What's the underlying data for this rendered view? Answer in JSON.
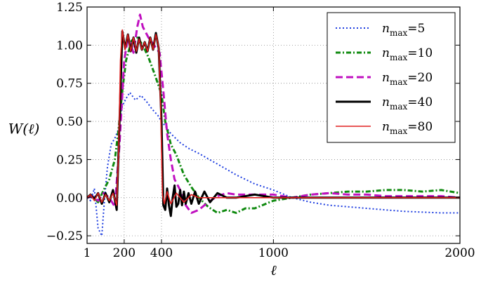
{
  "chart_data": {
    "type": "line",
    "title": "",
    "xlabel": "ℓ",
    "ylabel": "W(ℓ)",
    "xlim": [
      1,
      2000
    ],
    "ylim": [
      -0.3,
      1.25
    ],
    "grid": true,
    "legend_position": "top-right",
    "x_ticks": [
      {
        "value": 1,
        "label": "1"
      },
      {
        "value": 200,
        "label": "200"
      },
      {
        "value": 400,
        "label": "400"
      },
      {
        "value": 1000,
        "label": "1000"
      },
      {
        "value": 2000,
        "label": "2000"
      }
    ],
    "y_ticks": [
      {
        "value": -0.25,
        "label": "−0.25"
      },
      {
        "value": 0.0,
        "label": "0.00"
      },
      {
        "value": 0.25,
        "label": "0.25"
      },
      {
        "value": 0.5,
        "label": "0.50"
      },
      {
        "value": 0.75,
        "label": "0.75"
      },
      {
        "value": 1.0,
        "label": "1.00"
      },
      {
        "value": 1.25,
        "label": "1.25"
      }
    ],
    "series": [
      {
        "name": "n_max = 5",
        "legend_var": "n",
        "legend_sub": "max",
        "legend_eq": "=5",
        "color": "#1f3fe0",
        "dash": "2,3",
        "width": 2,
        "x": [
          1,
          20,
          40,
          60,
          80,
          95,
          110,
          130,
          150,
          170,
          190,
          210,
          230,
          260,
          290,
          320,
          350,
          380,
          400,
          420,
          450,
          500,
          550,
          600,
          700,
          800,
          900,
          1000,
          1100,
          1200,
          1300,
          1400,
          1500,
          1600,
          1700,
          1800,
          1900,
          2000
        ],
        "y": [
          0.0,
          -0.02,
          0.06,
          -0.2,
          -0.25,
          0.0,
          0.2,
          0.35,
          0.39,
          0.45,
          0.6,
          0.65,
          0.69,
          0.64,
          0.67,
          0.63,
          0.58,
          0.54,
          0.5,
          0.47,
          0.42,
          0.36,
          0.32,
          0.29,
          0.22,
          0.15,
          0.09,
          0.05,
          0.0,
          -0.03,
          -0.05,
          -0.06,
          -0.07,
          -0.08,
          -0.09,
          -0.095,
          -0.1,
          -0.1
        ]
      },
      {
        "name": "n_max = 10",
        "legend_var": "n",
        "legend_sub": "max",
        "legend_eq": "=10",
        "color": "#108a10",
        "dash": "7,3,2,3",
        "width": 3,
        "x": [
          1,
          30,
          60,
          90,
          120,
          150,
          170,
          190,
          210,
          240,
          270,
          300,
          330,
          360,
          380,
          400,
          420,
          450,
          480,
          520,
          560,
          600,
          650,
          700,
          750,
          800,
          850,
          900,
          1000,
          1100,
          1200,
          1300,
          1400,
          1500,
          1600,
          1700,
          1800,
          1900,
          2000
        ],
        "y": [
          0.0,
          0.01,
          -0.03,
          0.05,
          0.12,
          0.25,
          0.45,
          0.7,
          0.9,
          1.03,
          1.05,
          1.0,
          0.92,
          0.82,
          0.75,
          0.68,
          0.5,
          0.35,
          0.28,
          0.15,
          0.07,
          0.0,
          -0.06,
          -0.1,
          -0.08,
          -0.1,
          -0.07,
          -0.07,
          -0.02,
          0.0,
          0.02,
          0.03,
          0.04,
          0.04,
          0.05,
          0.05,
          0.04,
          0.05,
          0.03
        ]
      },
      {
        "name": "n_max = 20",
        "legend_var": "n",
        "legend_sub": "max",
        "legend_eq": "=20",
        "color": "#c010c0",
        "dash": "10,5",
        "width": 3,
        "x": [
          1,
          30,
          60,
          90,
          120,
          150,
          175,
          200,
          220,
          250,
          270,
          285,
          300,
          330,
          360,
          390,
          410,
          430,
          450,
          470,
          500,
          530,
          560,
          600,
          650,
          700,
          750,
          800,
          900,
          1000,
          1100,
          1200,
          1300,
          1400,
          1500,
          1600,
          1700,
          1800,
          1900,
          2000
        ],
        "y": [
          0.0,
          0.01,
          -0.02,
          0.03,
          0.0,
          -0.06,
          0.35,
          0.9,
          1.05,
          0.95,
          1.12,
          1.2,
          1.12,
          1.05,
          1.0,
          0.95,
          0.7,
          0.42,
          0.25,
          0.12,
          0.05,
          -0.05,
          -0.1,
          -0.08,
          -0.03,
          0.01,
          0.03,
          0.02,
          0.02,
          0.02,
          0.0,
          0.02,
          0.03,
          0.02,
          0.02,
          0.01,
          0.01,
          0.01,
          0.01,
          0.0
        ]
      },
      {
        "name": "n_max = 40",
        "legend_var": "n",
        "legend_sub": "max",
        "legend_eq": "=40",
        "color": "#000000",
        "dash": "",
        "width": 3,
        "x": [
          1,
          20,
          40,
          60,
          80,
          100,
          120,
          140,
          160,
          175,
          190,
          205,
          220,
          235,
          250,
          265,
          280,
          295,
          310,
          325,
          340,
          355,
          370,
          385,
          400,
          410,
          420,
          430,
          440,
          450,
          460,
          470,
          480,
          490,
          500,
          510,
          520,
          530,
          545,
          560,
          580,
          600,
          630,
          660,
          700,
          750,
          800,
          900,
          1000,
          1100,
          1200,
          1300,
          1400,
          1500,
          1600,
          1700,
          1800,
          1900,
          2000
        ],
        "y": [
          0.0,
          0.02,
          -0.01,
          0.03,
          -0.04,
          0.03,
          -0.03,
          0.05,
          -0.08,
          0.5,
          1.09,
          0.98,
          1.07,
          0.96,
          1.05,
          0.95,
          1.05,
          0.97,
          1.02,
          0.96,
          1.05,
          0.97,
          1.08,
          0.98,
          0.5,
          -0.05,
          -0.08,
          0.06,
          -0.05,
          -0.12,
          0.0,
          0.08,
          -0.06,
          -0.04,
          0.05,
          -0.05,
          0.04,
          -0.04,
          0.03,
          -0.04,
          0.04,
          -0.04,
          0.04,
          -0.03,
          0.03,
          0.0,
          0.0,
          0.02,
          0.0,
          0.0,
          0.0,
          0.0,
          0.0,
          0.0,
          0.0,
          0.0,
          0.0,
          0.0,
          0.0
        ]
      },
      {
        "name": "n_max = 80",
        "legend_var": "n",
        "legend_sub": "max",
        "legend_eq": "=80",
        "color": "#e02020",
        "dash": "",
        "width": 1.6,
        "x": [
          1,
          20,
          40,
          60,
          80,
          100,
          120,
          140,
          160,
          170,
          180,
          190,
          205,
          220,
          235,
          250,
          265,
          280,
          295,
          310,
          325,
          340,
          355,
          370,
          385,
          395,
          405,
          415,
          430,
          450,
          480,
          520,
          560,
          600,
          700,
          800,
          900,
          1000,
          1200,
          1400,
          1600,
          1800,
          2000
        ],
        "y": [
          0.0,
          0.02,
          -0.02,
          0.03,
          -0.03,
          0.02,
          -0.02,
          0.03,
          -0.05,
          0.3,
          0.9,
          1.1,
          0.97,
          1.07,
          0.96,
          1.05,
          0.96,
          1.04,
          0.97,
          1.02,
          0.96,
          1.05,
          0.97,
          1.07,
          0.99,
          0.6,
          0.02,
          -0.04,
          0.04,
          -0.04,
          0.03,
          -0.03,
          0.02,
          0.0,
          0.0,
          0.0,
          0.0,
          0.0,
          0.0,
          0.0,
          0.0,
          0.0,
          0.0
        ]
      }
    ]
  }
}
